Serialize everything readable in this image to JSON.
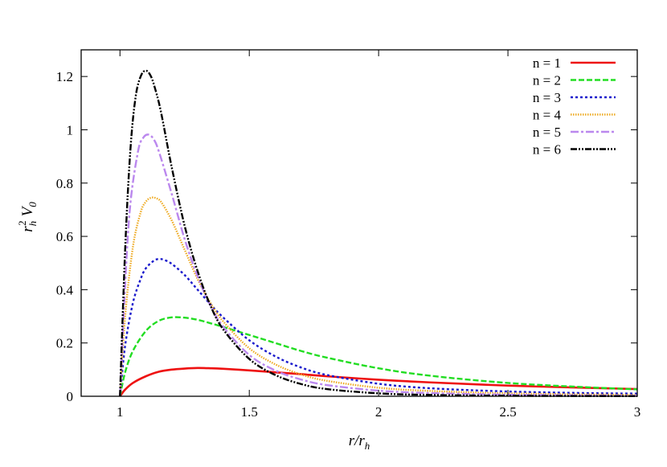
{
  "chart_data": {
    "type": "line",
    "xlabel": "r/r_h",
    "ylabel": "r_h^2 V_0",
    "xlim": [
      0.85,
      3.0
    ],
    "ylim": [
      0,
      1.3
    ],
    "xticks": [
      1,
      1.5,
      2,
      2.5,
      3
    ],
    "xtick_labels": [
      "1",
      "1.5",
      "2",
      "2.5",
      "3"
    ],
    "yticks": [
      0,
      0.2,
      0.4,
      0.6,
      0.8,
      1.0,
      1.2
    ],
    "ytick_labels": [
      "0",
      "0.2",
      "0.4",
      "0.6",
      "0.8",
      "1",
      "1.2"
    ],
    "grid": false,
    "legend_position": "top-right",
    "series": [
      {
        "name": "n = 1",
        "color": "#ee1111",
        "style": "solid",
        "x": [
          1.0,
          1.02,
          1.05,
          1.1,
          1.15,
          1.2,
          1.25,
          1.3,
          1.35,
          1.4,
          1.5,
          1.6,
          1.7,
          1.8,
          2.0,
          2.2,
          2.5,
          2.8,
          3.0
        ],
        "y": [
          0.0,
          0.025,
          0.05,
          0.075,
          0.092,
          0.1,
          0.104,
          0.106,
          0.105,
          0.103,
          0.097,
          0.09,
          0.083,
          0.075,
          0.062,
          0.052,
          0.04,
          0.032,
          0.027
        ]
      },
      {
        "name": "n = 2",
        "color": "#22dd22",
        "style": "dashed",
        "x": [
          1.0,
          1.02,
          1.05,
          1.1,
          1.15,
          1.2,
          1.25,
          1.3,
          1.35,
          1.4,
          1.5,
          1.6,
          1.7,
          1.8,
          2.0,
          2.2,
          2.5,
          2.8,
          3.0
        ],
        "y": [
          0.0,
          0.09,
          0.17,
          0.245,
          0.283,
          0.296,
          0.295,
          0.287,
          0.274,
          0.26,
          0.23,
          0.2,
          0.17,
          0.145,
          0.105,
          0.077,
          0.05,
          0.034,
          0.026
        ]
      },
      {
        "name": "n = 3",
        "color": "#1a1acc",
        "style": "dotted",
        "x": [
          1.0,
          1.02,
          1.05,
          1.08,
          1.1,
          1.13,
          1.15,
          1.17,
          1.2,
          1.25,
          1.3,
          1.35,
          1.4,
          1.5,
          1.6,
          1.7,
          1.8,
          2.0,
          2.2,
          2.5,
          2.8,
          3.0
        ],
        "y": [
          0.0,
          0.19,
          0.35,
          0.44,
          0.48,
          0.508,
          0.515,
          0.512,
          0.497,
          0.455,
          0.4,
          0.345,
          0.295,
          0.21,
          0.15,
          0.108,
          0.08,
          0.047,
          0.03,
          0.018,
          0.012,
          0.01
        ]
      },
      {
        "name": "n = 4",
        "color": "#eeaa22",
        "style": "fine-dotted",
        "x": [
          1.0,
          1.02,
          1.05,
          1.08,
          1.1,
          1.12,
          1.14,
          1.16,
          1.2,
          1.25,
          1.3,
          1.35,
          1.4,
          1.5,
          1.6,
          1.7,
          1.8,
          2.0,
          2.2,
          2.5,
          2.8,
          3.0
        ],
        "y": [
          0.0,
          0.3,
          0.56,
          0.69,
          0.73,
          0.745,
          0.743,
          0.728,
          0.66,
          0.55,
          0.44,
          0.35,
          0.28,
          0.18,
          0.12,
          0.082,
          0.058,
          0.032,
          0.02,
          0.011,
          0.007,
          0.005
        ]
      },
      {
        "name": "n = 5",
        "color": "#bb88ee",
        "style": "dash-dot",
        "x": [
          1.0,
          1.02,
          1.04,
          1.07,
          1.09,
          1.11,
          1.13,
          1.15,
          1.2,
          1.25,
          1.3,
          1.35,
          1.4,
          1.5,
          1.6,
          1.7,
          1.8,
          2.0,
          2.2,
          2.5,
          2.8,
          3.0
        ],
        "y": [
          0.0,
          0.42,
          0.72,
          0.92,
          0.97,
          0.982,
          0.965,
          0.92,
          0.76,
          0.59,
          0.45,
          0.34,
          0.26,
          0.155,
          0.097,
          0.063,
          0.042,
          0.021,
          0.012,
          0.006,
          0.003,
          0.002
        ]
      },
      {
        "name": "n = 6",
        "color": "#000000",
        "style": "dash-dot-dot",
        "x": [
          1.0,
          1.02,
          1.04,
          1.06,
          1.08,
          1.1,
          1.12,
          1.14,
          1.16,
          1.2,
          1.25,
          1.3,
          1.35,
          1.4,
          1.5,
          1.6,
          1.7,
          1.8,
          2.0,
          2.2,
          2.5,
          2.8,
          3.0
        ],
        "y": [
          0.0,
          0.55,
          0.92,
          1.12,
          1.2,
          1.222,
          1.2,
          1.14,
          1.06,
          0.86,
          0.64,
          0.47,
          0.34,
          0.25,
          0.14,
          0.08,
          0.046,
          0.027,
          0.011,
          0.005,
          0.002,
          0.001,
          0.0005
        ]
      }
    ]
  }
}
